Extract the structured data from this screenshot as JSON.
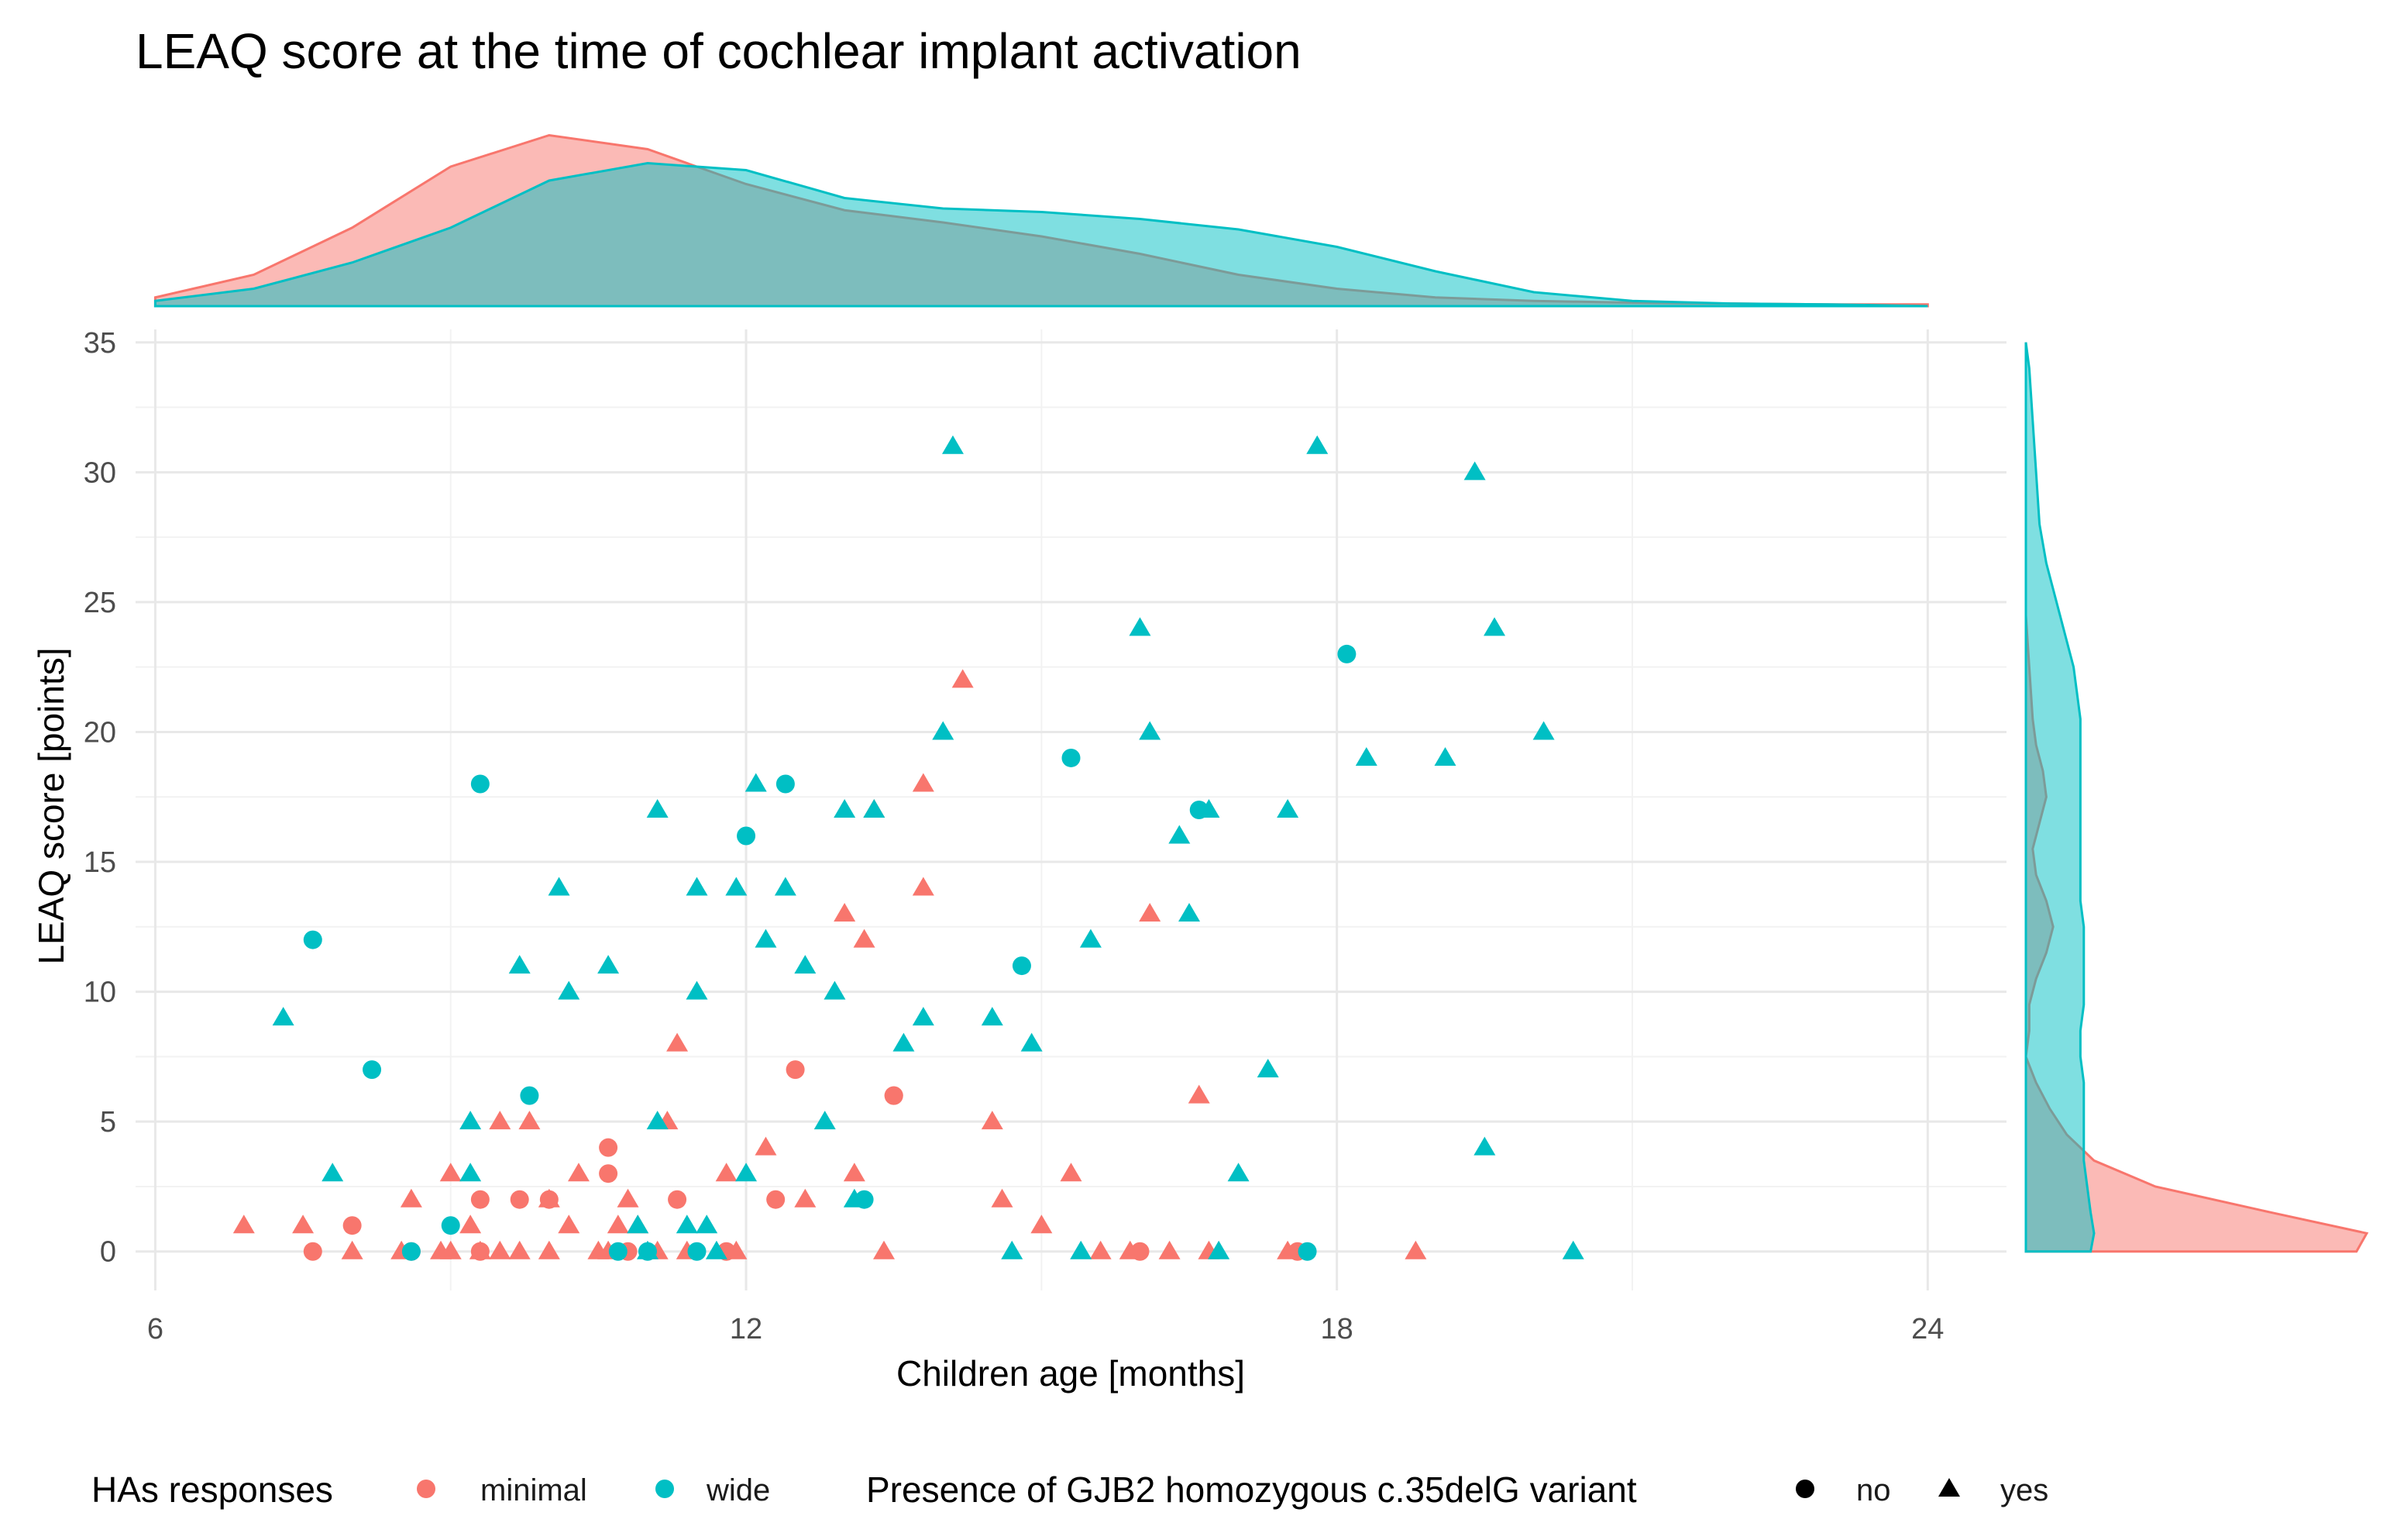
{
  "chart_data": {
    "type": "scatter",
    "title": "LEAQ score at the time of cochlear implant activation",
    "xlabel": "Children age [months]",
    "ylabel": "LEAQ score [points]",
    "xlim": [
      5.8,
      24.8
    ],
    "ylim": [
      -1.5,
      35.5
    ],
    "x_ticks": [
      6,
      12,
      18,
      24
    ],
    "y_ticks": [
      0,
      5,
      10,
      15,
      20,
      25,
      30,
      35
    ],
    "grid": true,
    "colors": {
      "minimal": "#F8766D",
      "wide": "#00BFC4"
    },
    "legend": {
      "placement": "bottom",
      "color_title": "HAs responses",
      "color_labels": [
        "minimal",
        "wide"
      ],
      "shape_title": "Presence of GJB2 homozygous c.35delG variant",
      "shape_labels": [
        "no",
        "yes"
      ]
    },
    "series": [
      {
        "name": "minimal",
        "shape_no": [
          [
            7.6,
            0
          ],
          [
            8.0,
            1
          ],
          [
            8.6,
            0
          ],
          [
            9.3,
            0
          ],
          [
            9.3,
            2
          ],
          [
            9.7,
            2
          ],
          [
            10.0,
            2
          ],
          [
            10.6,
            3
          ],
          [
            10.6,
            4
          ],
          [
            10.8,
            0
          ],
          [
            11.3,
            2
          ],
          [
            11.8,
            0
          ],
          [
            12.3,
            2
          ],
          [
            12.5,
            7
          ],
          [
            13.5,
            6
          ],
          [
            13.5,
            6
          ],
          [
            16.0,
            0
          ],
          [
            17.6,
            0
          ]
        ],
        "shape_yes": [
          [
            6.9,
            1
          ],
          [
            7.5,
            1
          ],
          [
            8.0,
            0
          ],
          [
            8.5,
            0
          ],
          [
            8.6,
            2
          ],
          [
            8.9,
            0
          ],
          [
            9.0,
            0
          ],
          [
            9.0,
            3
          ],
          [
            9.2,
            1
          ],
          [
            9.3,
            0
          ],
          [
            9.5,
            5
          ],
          [
            9.5,
            0
          ],
          [
            9.7,
            0
          ],
          [
            9.8,
            5
          ],
          [
            10.0,
            0
          ],
          [
            10.0,
            2
          ],
          [
            10.2,
            1
          ],
          [
            10.3,
            3
          ],
          [
            10.5,
            0
          ],
          [
            10.6,
            0
          ],
          [
            10.7,
            1
          ],
          [
            10.8,
            2
          ],
          [
            10.9,
            1
          ],
          [
            11.1,
            0
          ],
          [
            11.2,
            5
          ],
          [
            11.3,
            8
          ],
          [
            11.4,
            0
          ],
          [
            11.8,
            3
          ],
          [
            11.9,
            0
          ],
          [
            12.2,
            4
          ],
          [
            12.6,
            2
          ],
          [
            13.0,
            13
          ],
          [
            13.1,
            3
          ],
          [
            13.2,
            12
          ],
          [
            13.3,
            17
          ],
          [
            13.4,
            0
          ],
          [
            13.8,
            18
          ],
          [
            13.8,
            14
          ],
          [
            14.2,
            22
          ],
          [
            14.5,
            5
          ],
          [
            14.6,
            2
          ],
          [
            15.0,
            1
          ],
          [
            15.3,
            3
          ],
          [
            15.6,
            0
          ],
          [
            15.9,
            0
          ],
          [
            16.1,
            13
          ],
          [
            16.3,
            0
          ],
          [
            16.6,
            6
          ],
          [
            16.7,
            0
          ],
          [
            17.5,
            0
          ],
          [
            18.8,
            0
          ]
        ]
      },
      {
        "name": "wide",
        "shape_no": [
          [
            7.6,
            12
          ],
          [
            8.2,
            7
          ],
          [
            8.6,
            0
          ],
          [
            9.0,
            1
          ],
          [
            9.3,
            18
          ],
          [
            9.8,
            6
          ],
          [
            10.7,
            0
          ],
          [
            11.0,
            0
          ],
          [
            11.5,
            0
          ],
          [
            12.0,
            16
          ],
          [
            12.4,
            18
          ],
          [
            13.2,
            2
          ],
          [
            14.8,
            11
          ],
          [
            15.3,
            19
          ],
          [
            16.6,
            17
          ],
          [
            18.1,
            23
          ],
          [
            17.7,
            0
          ]
        ],
        "shape_yes": [
          [
            7.3,
            9
          ],
          [
            7.8,
            3
          ],
          [
            9.2,
            3
          ],
          [
            9.2,
            5
          ],
          [
            9.7,
            11
          ],
          [
            10.1,
            14
          ],
          [
            10.2,
            10
          ],
          [
            10.6,
            11
          ],
          [
            10.9,
            1
          ],
          [
            11.0,
            0
          ],
          [
            11.1,
            17
          ],
          [
            11.1,
            5
          ],
          [
            11.4,
            1
          ],
          [
            11.5,
            10
          ],
          [
            11.5,
            14
          ],
          [
            11.6,
            1
          ],
          [
            11.7,
            0
          ],
          [
            11.9,
            14
          ],
          [
            12.0,
            3
          ],
          [
            12.1,
            18
          ],
          [
            12.2,
            12
          ],
          [
            12.4,
            14
          ],
          [
            12.6,
            11
          ],
          [
            12.8,
            5
          ],
          [
            12.9,
            10
          ],
          [
            13.0,
            17
          ],
          [
            13.1,
            2
          ],
          [
            13.3,
            17
          ],
          [
            13.6,
            8
          ],
          [
            13.8,
            9
          ],
          [
            14.0,
            20
          ],
          [
            14.1,
            31
          ],
          [
            14.5,
            9
          ],
          [
            14.7,
            0
          ],
          [
            14.9,
            8
          ],
          [
            15.4,
            0
          ],
          [
            15.5,
            12
          ],
          [
            16.0,
            24
          ],
          [
            16.1,
            20
          ],
          [
            16.4,
            16
          ],
          [
            16.5,
            13
          ],
          [
            16.7,
            17
          ],
          [
            16.8,
            0
          ],
          [
            17.0,
            3
          ],
          [
            17.3,
            7
          ],
          [
            17.5,
            17
          ],
          [
            17.8,
            31
          ],
          [
            18.3,
            19
          ],
          [
            19.1,
            19
          ],
          [
            19.4,
            30
          ],
          [
            19.5,
            4
          ],
          [
            19.6,
            24
          ],
          [
            20.1,
            20
          ],
          [
            20.4,
            0
          ]
        ]
      }
    ],
    "marginal_x_density": {
      "x": [
        6,
        7,
        8,
        9,
        10,
        11,
        12,
        13,
        14,
        15,
        16,
        17,
        18,
        19,
        20,
        21,
        22,
        23,
        24
      ],
      "minimal": [
        0.05,
        0.18,
        0.45,
        0.8,
        0.98,
        0.9,
        0.7,
        0.55,
        0.48,
        0.4,
        0.3,
        0.18,
        0.1,
        0.05,
        0.03,
        0.02,
        0.015,
        0.01,
        0.01
      ],
      "wide": [
        0.03,
        0.1,
        0.25,
        0.45,
        0.72,
        0.82,
        0.78,
        0.62,
        0.56,
        0.54,
        0.5,
        0.44,
        0.34,
        0.2,
        0.08,
        0.03,
        0.015,
        0.01,
        0.0
      ]
    },
    "marginal_y_density": {
      "y": [
        0,
        0.7,
        1.5,
        2.5,
        3.5,
        4.5,
        5.5,
        6.5,
        7.5,
        8.5,
        9.5,
        10.5,
        11.5,
        12.5,
        13.5,
        14.5,
        15.5,
        16.5,
        17.5,
        18.5,
        19.5,
        20.5,
        21.5,
        22.5,
        23.5,
        24.5,
        25.5,
        26.5,
        28,
        30,
        32,
        34,
        35
      ],
      "minimal": [
        0.97,
        1.0,
        0.72,
        0.38,
        0.2,
        0.12,
        0.07,
        0.03,
        0.0,
        0.01,
        0.01,
        0.03,
        0.06,
        0.08,
        0.06,
        0.03,
        0.02,
        0.04,
        0.06,
        0.05,
        0.03,
        0.02,
        0.015,
        0.01,
        0.005,
        0.0,
        0,
        0,
        0,
        0,
        0,
        0,
        0
      ],
      "wide": [
        0.19,
        0.2,
        0.19,
        0.18,
        0.17,
        0.17,
        0.17,
        0.17,
        0.16,
        0.16,
        0.17,
        0.17,
        0.17,
        0.17,
        0.16,
        0.16,
        0.16,
        0.16,
        0.16,
        0.16,
        0.16,
        0.16,
        0.15,
        0.14,
        0.12,
        0.1,
        0.08,
        0.06,
        0.04,
        0.03,
        0.02,
        0.01,
        0.0
      ]
    }
  }
}
